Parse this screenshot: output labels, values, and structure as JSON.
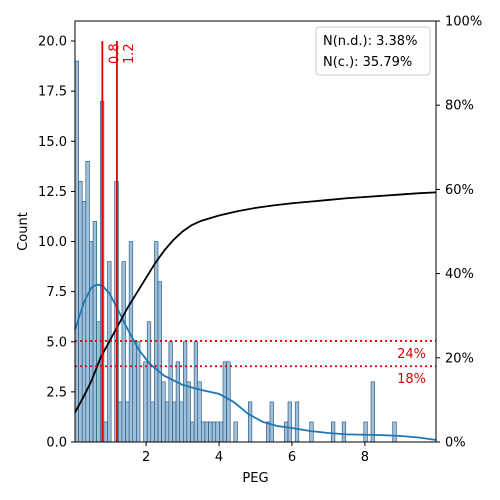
{
  "chart_data": {
    "type": "bar",
    "xlabel": "PEG",
    "ylabel": "Count",
    "xlim": [
      0.05,
      9.95
    ],
    "ylim": [
      0,
      21
    ],
    "y2lim": [
      0,
      100
    ],
    "grid": false,
    "x_ticks": [
      2,
      4,
      6,
      8
    ],
    "x_tick_labels": [
      "2",
      "4",
      "6",
      "8"
    ],
    "y_ticks": [
      0,
      2.5,
      5,
      7.5,
      10,
      12.5,
      15,
      17.5,
      20
    ],
    "y_tick_labels": [
      "0.0",
      "2.5",
      "5.0",
      "7.5",
      "10.0",
      "12.5",
      "15.0",
      "17.5",
      "20.0"
    ],
    "y2_ticks": [
      0,
      20,
      40,
      60,
      80,
      100
    ],
    "y2_tick_labels": [
      "0%",
      "20%",
      "40%",
      "60%",
      "80%",
      "100%"
    ],
    "legend": {
      "position": "top-right",
      "lines": [
        "N(n.d.): 3.38%",
        "N(c.): 35.79%"
      ]
    },
    "histogram": {
      "bin_start": 0.05,
      "bin_width": 0.099,
      "fill": "#9fc0da",
      "edge": "#1f4e79",
      "counts": [
        19,
        13,
        12,
        14,
        10,
        11,
        6,
        17,
        1,
        9,
        0,
        13,
        2,
        9,
        2,
        10,
        5,
        5,
        0,
        4,
        6,
        2,
        10,
        8,
        3,
        2,
        5,
        2,
        4,
        2,
        5,
        3,
        1,
        5,
        3,
        1,
        1,
        1,
        1,
        1,
        1,
        4,
        4,
        0,
        1,
        0,
        0,
        0,
        2,
        0,
        0,
        0,
        0,
        1,
        2,
        0,
        0,
        0,
        1,
        2,
        0,
        2,
        0,
        0,
        0,
        1,
        0,
        0,
        0,
        0,
        0,
        1,
        0,
        0,
        1,
        0,
        0,
        0,
        0,
        0,
        1,
        0,
        3,
        0,
        0,
        0,
        0,
        0,
        1,
        0,
        0,
        0,
        0,
        0,
        0,
        0,
        0,
        0,
        0,
        0
      ]
    },
    "kde": {
      "color": "#1f77b4",
      "points": [
        [
          0.05,
          5.6
        ],
        [
          0.3,
          7.0
        ],
        [
          0.5,
          7.7
        ],
        [
          0.65,
          7.85
        ],
        [
          0.8,
          7.8
        ],
        [
          1.0,
          7.4
        ],
        [
          1.2,
          6.7
        ],
        [
          1.5,
          5.6
        ],
        [
          1.8,
          4.6
        ],
        [
          2.1,
          3.9
        ],
        [
          2.5,
          3.3
        ],
        [
          3.0,
          2.85
        ],
        [
          3.5,
          2.6
        ],
        [
          4.0,
          2.4
        ],
        [
          4.4,
          2.0
        ],
        [
          4.8,
          1.4
        ],
        [
          5.2,
          1.0
        ],
        [
          5.6,
          0.8
        ],
        [
          6.0,
          0.7
        ],
        [
          6.5,
          0.55
        ],
        [
          7.0,
          0.45
        ],
        [
          7.5,
          0.38
        ],
        [
          8.0,
          0.36
        ],
        [
          8.5,
          0.34
        ],
        [
          9.0,
          0.3
        ],
        [
          9.5,
          0.22
        ],
        [
          9.95,
          0.1
        ]
      ]
    },
    "cumulative": {
      "color": "#000000",
      "points": [
        [
          0.05,
          7
        ],
        [
          0.3,
          11
        ],
        [
          0.5,
          14.5
        ],
        [
          0.75,
          20
        ],
        [
          1.0,
          24
        ],
        [
          1.25,
          28
        ],
        [
          1.5,
          32
        ],
        [
          1.75,
          35.5
        ],
        [
          2.0,
          39
        ],
        [
          2.25,
          42.5
        ],
        [
          2.5,
          45.5
        ],
        [
          2.75,
          48
        ],
        [
          3.0,
          50
        ],
        [
          3.25,
          51.5
        ],
        [
          3.5,
          52.5
        ],
        [
          4.0,
          53.8
        ],
        [
          4.5,
          54.8
        ],
        [
          5.0,
          55.6
        ],
        [
          5.5,
          56.2
        ],
        [
          6.0,
          56.7
        ],
        [
          6.5,
          57.1
        ],
        [
          7.0,
          57.5
        ],
        [
          7.5,
          57.9
        ],
        [
          8.0,
          58.2
        ],
        [
          8.5,
          58.5
        ],
        [
          9.0,
          58.8
        ],
        [
          9.5,
          59.1
        ],
        [
          9.95,
          59.3
        ]
      ]
    },
    "vlines": [
      {
        "x": 0.8,
        "label": "0.8",
        "color": "#e00000"
      },
      {
        "x": 1.2,
        "label": "1.2",
        "color": "#e00000"
      }
    ],
    "hlines": [
      {
        "y2": 24,
        "label": "24%",
        "color": "#e00000"
      },
      {
        "y2": 18,
        "label": "18%",
        "color": "#e00000"
      }
    ]
  }
}
